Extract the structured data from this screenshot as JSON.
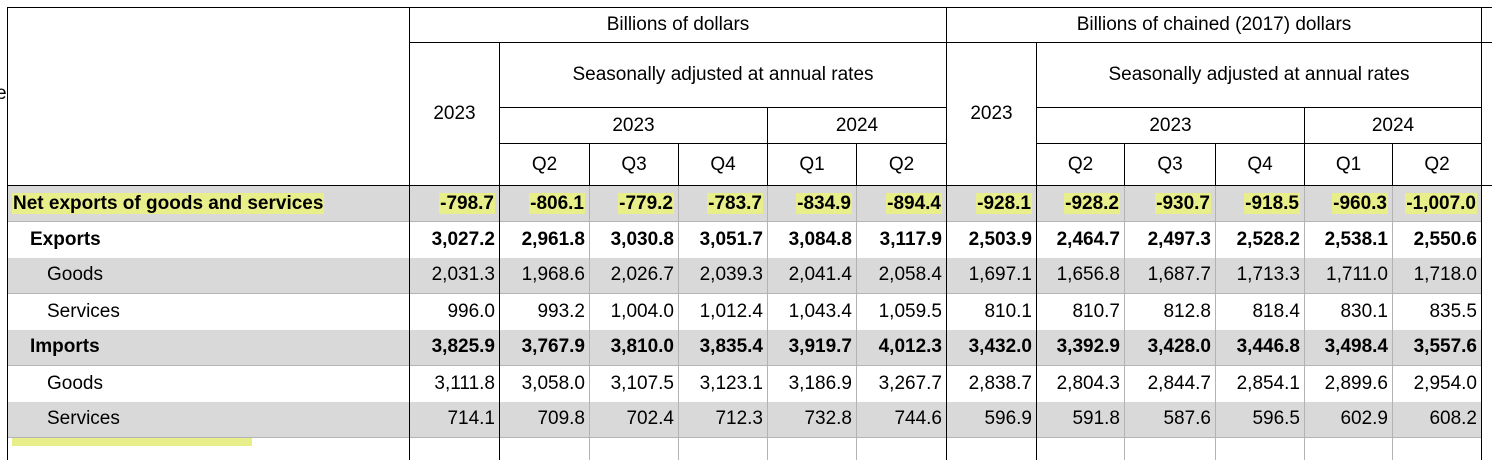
{
  "left_fragment": "e",
  "headers": {
    "group_current": "Billions of dollars",
    "group_chained": "Billions of chained (2017) dollars",
    "seasonal": "Seasonally adjusted at annual rates",
    "annual_year": "2023",
    "year_2023": "2023",
    "year_2024": "2024",
    "quarters": [
      "Q2",
      "Q3",
      "Q4",
      "Q1",
      "Q2"
    ]
  },
  "rows": [
    {
      "label": "Net exports of goods and services",
      "values": [
        "-798.7",
        "-806.1",
        "-779.2",
        "-783.7",
        "-834.9",
        "-894.4",
        "-928.1",
        "-928.2",
        "-930.7",
        "-918.5",
        "-960.3",
        "-1,007.0"
      ]
    },
    {
      "label": "Exports",
      "values": [
        "3,027.2",
        "2,961.8",
        "3,030.8",
        "3,051.7",
        "3,084.8",
        "3,117.9",
        "2,503.9",
        "2,464.7",
        "2,497.3",
        "2,528.2",
        "2,538.1",
        "2,550.6"
      ]
    },
    {
      "label": "Goods",
      "values": [
        "2,031.3",
        "1,968.6",
        "2,026.7",
        "2,039.3",
        "2,041.4",
        "2,058.4",
        "1,697.1",
        "1,656.8",
        "1,687.7",
        "1,713.3",
        "1,711.0",
        "1,718.0"
      ]
    },
    {
      "label": "Services",
      "values": [
        "996.0",
        "993.2",
        "1,004.0",
        "1,012.4",
        "1,043.4",
        "1,059.5",
        "810.1",
        "810.7",
        "812.8",
        "818.4",
        "830.1",
        "835.5"
      ]
    },
    {
      "label": "Imports",
      "values": [
        "3,825.9",
        "3,767.9",
        "3,810.0",
        "3,835.4",
        "3,919.7",
        "4,012.3",
        "3,432.0",
        "3,392.9",
        "3,428.0",
        "3,446.8",
        "3,498.4",
        "3,557.6"
      ]
    },
    {
      "label": "Goods",
      "values": [
        "3,111.8",
        "3,058.0",
        "3,107.5",
        "3,123.1",
        "3,186.9",
        "3,267.7",
        "2,838.7",
        "2,804.3",
        "2,844.7",
        "2,854.1",
        "2,899.6",
        "2,954.0"
      ]
    },
    {
      "label": "Services",
      "values": [
        "714.1",
        "709.8",
        "702.4",
        "712.3",
        "732.8",
        "744.6",
        "596.9",
        "591.8",
        "587.6",
        "596.5",
        "602.9",
        "608.2"
      ]
    }
  ]
}
